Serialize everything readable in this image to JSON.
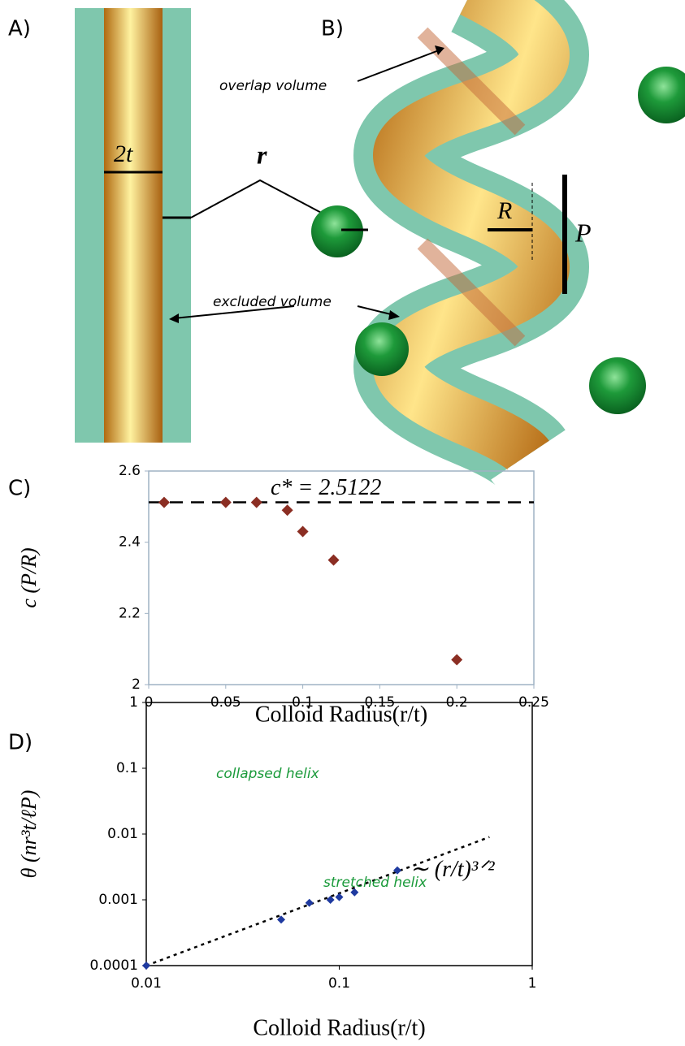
{
  "illustration": {
    "panel_a": {
      "label": "A)",
      "thickness_label": "2t",
      "distance_label": "r",
      "region_label": "excluded volume"
    },
    "panel_b": {
      "label": "B)",
      "radius_label": "R",
      "pitch_label": "P",
      "region_label": "overlap volume"
    }
  },
  "chart_data": [
    {
      "type": "scatter",
      "panel_label": "C)",
      "x_label": "Colloid Radius(r/t)",
      "y_label": "c (P/R)",
      "x": [
        0.01,
        0.05,
        0.07,
        0.09,
        0.1,
        0.12,
        0.2
      ],
      "values": [
        2.512,
        2.512,
        2.512,
        2.49,
        2.43,
        2.35,
        2.07
      ],
      "color": "#8b2e23",
      "xlim": [
        0,
        0.25
      ],
      "xticks": [
        0,
        0.05,
        0.1,
        0.15,
        0.2,
        0.25
      ],
      "ylim": [
        2,
        2.6
      ],
      "yticks": [
        2,
        2.2,
        2.4,
        2.6
      ],
      "log_scale": false,
      "reference_line": {
        "value": 2.5122,
        "label": "c* = 2.5122"
      }
    },
    {
      "type": "scatter",
      "panel_label": "D)",
      "x_label": "Colloid Radius(r/t)",
      "y_label": "θ (nr³t/ℓP)",
      "x": [
        0.01,
        0.05,
        0.07,
        0.09,
        0.1,
        0.12,
        0.2
      ],
      "values": [
        0.0001,
        0.0005,
        0.0009,
        0.001,
        0.0011,
        0.0013,
        0.0028
      ],
      "color": "#1f3aa0",
      "xlim": [
        0.01,
        1
      ],
      "xticks": [
        0.01,
        0.1,
        1
      ],
      "ylim": [
        0.0001,
        1
      ],
      "yticks": [
        0.0001,
        0.001,
        0.01,
        0.1,
        1
      ],
      "log_scale": true,
      "trend_line": {
        "x": [
          0.01,
          0.6
        ],
        "values": [
          0.0001,
          0.009
        ],
        "label": "∼ (r/t)³ᐟ²"
      },
      "annotations": [
        "collapsed helix",
        "stretched helix"
      ]
    }
  ]
}
